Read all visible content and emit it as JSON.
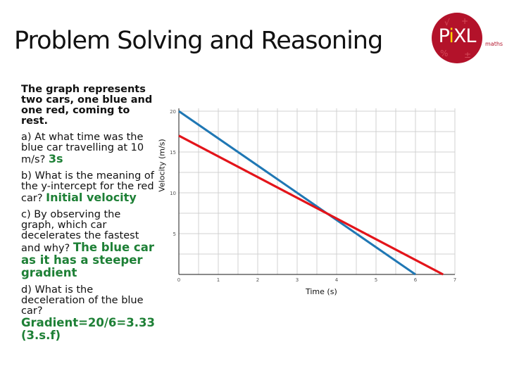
{
  "title": "Problem Solving and Reasoning",
  "logo": {
    "text_main": "PiXL",
    "text_pre": "P",
    "text_dot": "i",
    "text_post": "XL",
    "tag": "maths",
    "color": "#b3122a"
  },
  "questions": {
    "intro": "The graph represents two cars, one blue and one red, coming to rest.",
    "a_question": "a) At what time was the blue car travelling at 10 m/s?",
    "a_answer": "3s",
    "b_question": "b) What is the meaning of the y-intercept for the red car?",
    "b_answer": "Initial velocity",
    "c_question": "c) By observing the graph, which car decelerates the fastest and why?",
    "c_answer": "The blue car as it has a steeper gradient",
    "d_question": "d) What is the deceleration of the blue car?",
    "d_answer": "Gradient=20/6=3.33 (3.s.f)"
  },
  "chart_data": {
    "type": "line",
    "xlabel": "Time (s)",
    "ylabel": "Velocity (m/s)",
    "xlim": [
      0,
      7
    ],
    "ylim": [
      0,
      20
    ],
    "x_ticks": [
      "0",
      "1",
      "2",
      "3",
      "4",
      "5",
      "6",
      "7"
    ],
    "y_ticks": [
      "5",
      "10",
      "15",
      "20"
    ],
    "grid": true,
    "series": [
      {
        "color": "#1f77b4",
        "x": [
          0,
          6
        ],
        "y": [
          20,
          0
        ]
      },
      {
        "color": "#e3141a",
        "x": [
          0,
          6.7
        ],
        "y": [
          17,
          0
        ]
      }
    ]
  }
}
